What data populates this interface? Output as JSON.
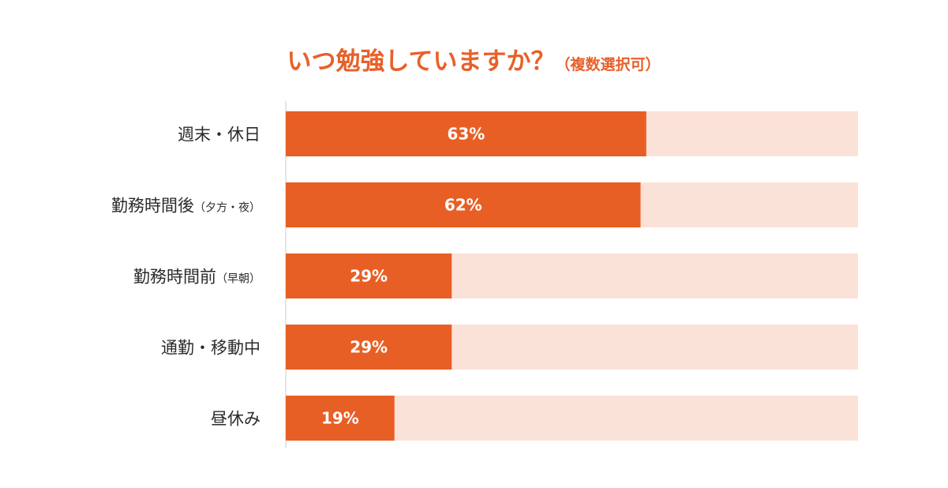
{
  "chart_data": {
    "type": "bar",
    "orientation": "horizontal",
    "title": "いつ勉強していますか？",
    "subtitle": "（複数選択可）",
    "categories": [
      {
        "main": "週末・休日",
        "sub": ""
      },
      {
        "main": "勤務時間後",
        "sub": "（夕方・夜）"
      },
      {
        "main": "勤務時間前",
        "sub": "（早朝）"
      },
      {
        "main": "通勤・移動中",
        "sub": ""
      },
      {
        "main": "昼休み",
        "sub": ""
      }
    ],
    "values": [
      63,
      62,
      29,
      29,
      19
    ],
    "value_labels": [
      "63%",
      "62%",
      "29%",
      "29%",
      "19%"
    ],
    "xlim": [
      0,
      100
    ],
    "grid": false,
    "legend": "none",
    "colors": {
      "title": "#e8602a",
      "bar": "#e85f25",
      "track": "#fbe2d8",
      "value_text": "#ffffff",
      "category_text": "#2b2b2b",
      "axis_line": "#cccccc"
    }
  }
}
